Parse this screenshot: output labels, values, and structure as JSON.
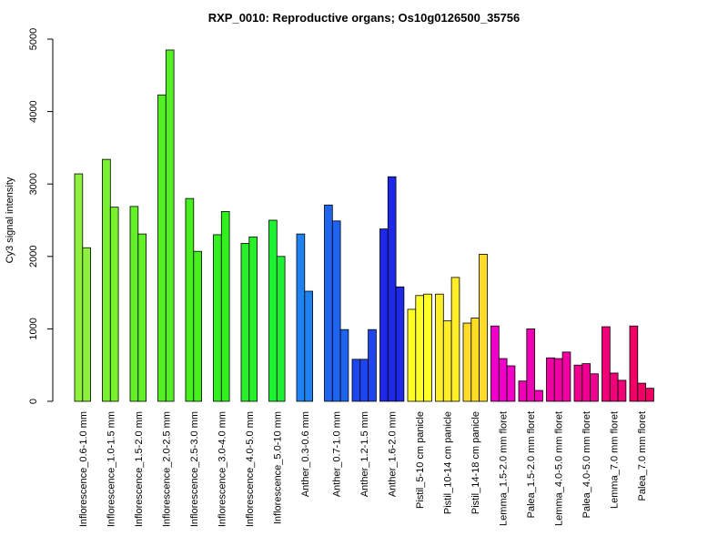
{
  "chart_data": {
    "type": "bar",
    "title": "RXP_0010: Reproductive organs; Os10g0126500_35756",
    "xlabel": "",
    "ylabel": "Cy3 signal intensity",
    "ylim": [
      0,
      5000
    ],
    "yticks": [
      "0",
      "1000",
      "2000",
      "3000",
      "4000",
      "5000"
    ],
    "grid": false,
    "categories": [
      "Inflorescence_0.6-1.0 mm",
      "Inflorescence_1.0-1.5 mm",
      "Inflorescence_1.5-2.0 mm",
      "Inflorescence_2.0-2.5 mm",
      "Inflorescence_2.5-3.0 mm",
      "Inflorescence_3.0-4.0 mm",
      "Inflorescence_4.0-5.0 mm",
      "Inflorescence_5.0-10 mm",
      "Anther_0.3-0.6 mm",
      "Anther_0.7-1.0 mm",
      "Anther_1.2-1.5 mm",
      "Anther_1.6-2.0 mm",
      "Pistil_5-10 cm panicle",
      "Pistil_10-14 cm panicle",
      "Pistil_14-18 cm panicle",
      "Lemma_1.5-2.0 mm floret",
      "Palea_1.5-2.0 mm floret",
      "Lemma_4.0-5.0 mm floret",
      "Palea_4.0-5.0 mm floret",
      "Lemma_7.0 mm floret",
      "Palea_7.0 mm floret"
    ],
    "groups": [
      {
        "values": [
          3140,
          2120
        ],
        "color": "#8cf03c"
      },
      {
        "values": [
          3340,
          2680
        ],
        "color": "#78f02d"
      },
      {
        "values": [
          2690,
          2310
        ],
        "color": "#64f028"
      },
      {
        "values": [
          4230,
          4850
        ],
        "color": "#55f023"
      },
      {
        "values": [
          2800,
          2070
        ],
        "color": "#46f01e"
      },
      {
        "values": [
          2300,
          2620
        ],
        "color": "#32f01e"
      },
      {
        "values": [
          2180,
          2270
        ],
        "color": "#28f028"
      },
      {
        "values": [
          2500,
          2000
        ],
        "color": "#1ef032"
      },
      {
        "values": [
          2310,
          1520
        ],
        "color": "#1e82f0"
      },
      {
        "values": [
          2710,
          2490,
          990
        ],
        "color": "#1e64f0"
      },
      {
        "values": [
          580,
          580,
          990
        ],
        "color": "#1e46f0"
      },
      {
        "values": [
          2380,
          3100,
          1580
        ],
        "color": "#1e28e6"
      },
      {
        "values": [
          1270,
          1460,
          1480
        ],
        "color": "#ffff28"
      },
      {
        "values": [
          1480,
          1110,
          1710
        ],
        "color": "#ffee28"
      },
      {
        "values": [
          1080,
          1150,
          2030
        ],
        "color": "#ffdc28"
      },
      {
        "values": [
          1040,
          590,
          490
        ],
        "color": "#f000c8"
      },
      {
        "values": [
          280,
          1000,
          150
        ],
        "color": "#f000b4"
      },
      {
        "values": [
          600,
          590,
          680
        ],
        "color": "#f000a0"
      },
      {
        "values": [
          500,
          520,
          380
        ],
        "color": "#f00090"
      },
      {
        "values": [
          1030,
          390,
          290
        ],
        "color": "#f00078"
      },
      {
        "values": [
          1040,
          250,
          180
        ],
        "color": "#f00064"
      }
    ]
  }
}
